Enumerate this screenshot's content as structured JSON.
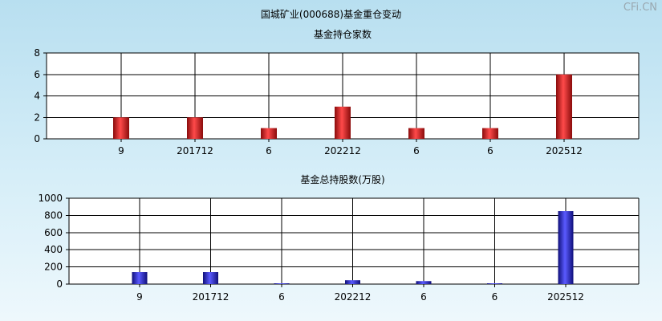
{
  "page": {
    "title": "国城矿业(000688)基金重仓变动",
    "watermark": "CFi.CN"
  },
  "colors": {
    "bar1": "#d42020",
    "bar2": "#2a2ad0",
    "grid": "#000000"
  },
  "chart_data": [
    {
      "type": "bar",
      "title": "基金持仓家数",
      "categories": [
        "9",
        "201712",
        "6",
        "202212",
        "6",
        "6",
        "202512"
      ],
      "values": [
        2,
        2,
        1,
        3,
        1,
        1,
        6
      ],
      "ylim": [
        0,
        8
      ],
      "yticks": [
        0,
        2,
        4,
        6,
        8
      ],
      "grid": true
    },
    {
      "type": "bar",
      "title": "基金总持股数(万股)",
      "categories": [
        "9",
        "201712",
        "6",
        "202212",
        "6",
        "6",
        "202512"
      ],
      "values": [
        140,
        140,
        5,
        45,
        35,
        5,
        850
      ],
      "ylim": [
        0,
        1000
      ],
      "yticks": [
        0,
        200,
        400,
        600,
        800,
        1000
      ],
      "grid": true
    }
  ]
}
